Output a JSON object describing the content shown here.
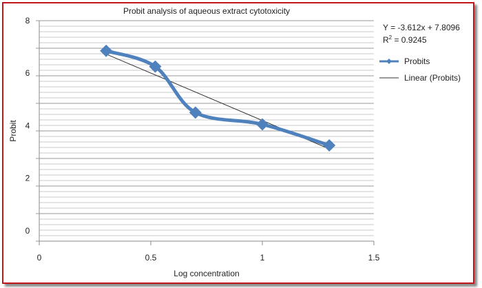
{
  "chart_data": {
    "type": "line",
    "title": "Probit analysis of aqueous extract cytotoxicity",
    "xlabel": "Log concentration",
    "ylabel": "Probit",
    "xlim": [
      0,
      1.5
    ],
    "ylim": [
      -0.4,
      8
    ],
    "xticks": [
      "0",
      "0.5",
      "1",
      "1.5"
    ],
    "yticks": [
      "8",
      "6",
      "4",
      "2",
      "0"
    ],
    "grid": true,
    "legend_position": "right",
    "series": [
      {
        "name": "Probits",
        "x": [
          0.3,
          0.52,
          0.7,
          1.0,
          1.3
        ],
        "y": [
          6.85,
          6.25,
          4.5,
          4.05,
          3.25
        ],
        "color": "#4f81bd",
        "marker": "diamond",
        "smooth": true
      }
    ],
    "trendline": {
      "name": "Linear (Probits)",
      "slope": -3.612,
      "intercept": 7.8096,
      "color": "#333333"
    },
    "equation": "Y = -3.612x + 7.8096",
    "r2_label": "R",
    "r2_sup": "2",
    "r2_value": " = 0.9245"
  }
}
